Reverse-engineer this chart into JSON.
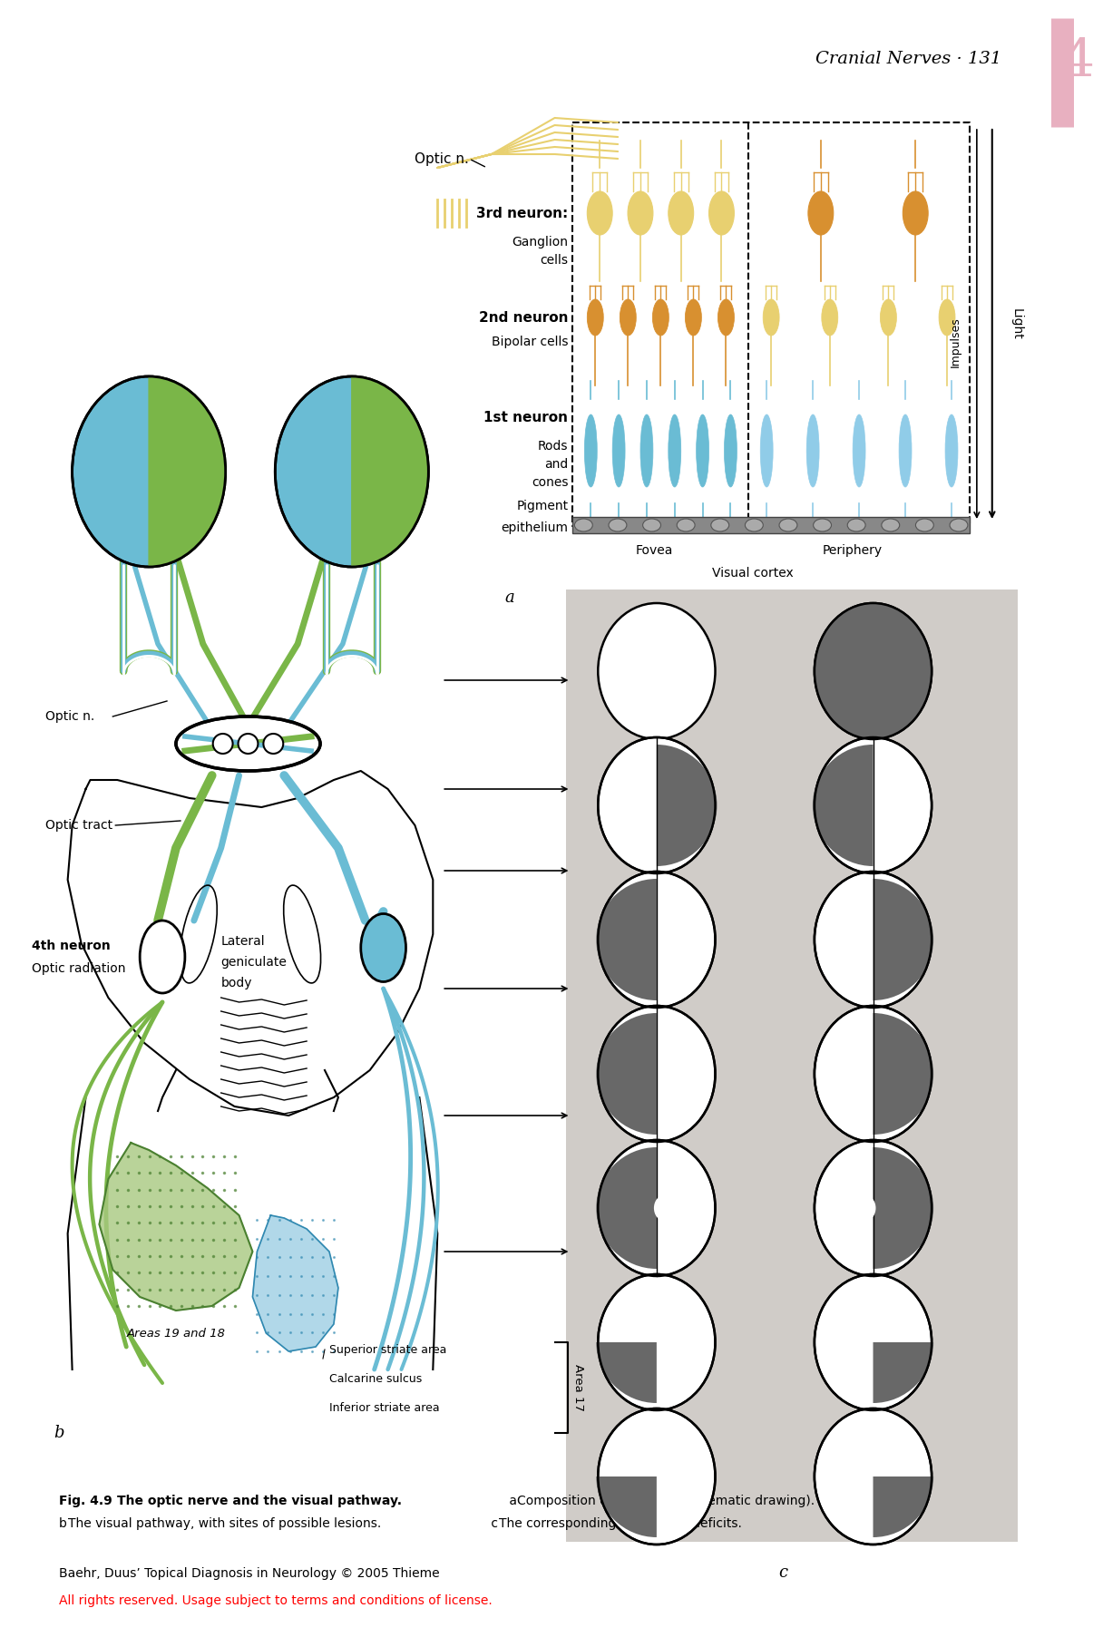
{
  "title": "Cranial Nerves · 131",
  "chapter_num": "4",
  "bg_color": "#ffffff",
  "green_color": "#7ab648",
  "blue_color": "#6abcd4",
  "yellow_color": "#e8d070",
  "orange_color": "#d89030",
  "dark_green": "#4a8030",
  "light_green": "#a8c880",
  "gray_bg": "#d0ccc8",
  "dark_gray": "#686868",
  "pink_bar": "#e8b0c0",
  "caption_bold": "Fig. 4.9 ",
  "caption_main": "The optic nerve and the visual pathway.",
  "caption_a": " a ",
  "caption_a_text": "Composition of the retina (schematic drawing).",
  "caption_b": " b ",
  "caption_b_text": "The visual pathway, with sites of possible lesions.",
  "caption_c": " c ",
  "caption_c_text": "The corresponding visual field deficits.",
  "footer": "Baehr, Duus’ Topical Diagnosis in Neurology © 2005 Thieme",
  "footer_red": "All rights reserved. Usage subject to terms and conditions of license.",
  "vf_patterns": [
    [
      "white",
      "dark_full"
    ],
    [
      "dark_right_half",
      "dark_left_half"
    ],
    [
      "dark_left_half",
      "dark_right_half"
    ],
    [
      "dark_left_half",
      "dark_right_half_small"
    ],
    [
      "dark_left_scotoma",
      "dark_right_scotoma"
    ],
    [
      "dark_left_quad",
      "dark_right_quad_white"
    ],
    [
      "dark_bottom_left",
      "dark_bottom_right"
    ]
  ]
}
